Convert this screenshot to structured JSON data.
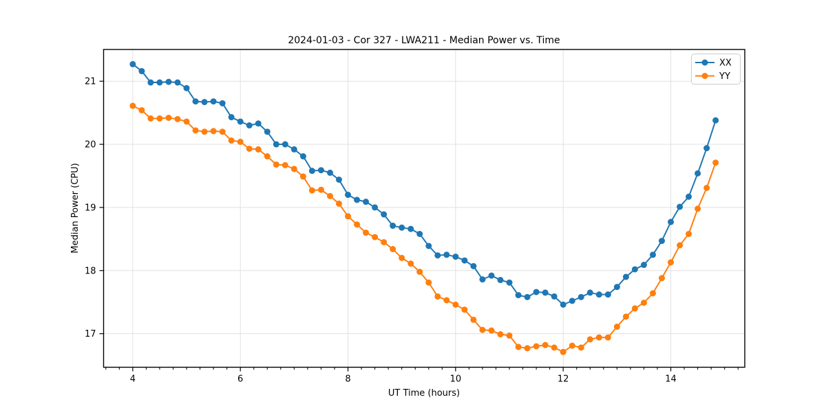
{
  "figure": {
    "title": "2024-01-03 - Cor 327 - LWA211 - Median Power vs. Time",
    "xlabel": "UT Time (hours)",
    "ylabel": "Median Power (CPU)"
  },
  "chart_data": {
    "type": "line",
    "title": "2024-01-03 - Cor 327 - LWA211 - Median Power vs. Time",
    "xlabel": "UT Time (hours)",
    "ylabel": "Median Power (CPU)",
    "xlim": [
      3.458,
      15.375
    ],
    "ylim": [
      16.468,
      21.503
    ],
    "x_major_ticks": [
      4,
      6,
      8,
      10,
      12,
      14
    ],
    "x_minor_tick_step": 0.25,
    "y_major_ticks": [
      17,
      18,
      19,
      20,
      21
    ],
    "grid": true,
    "legend_position": "upper right",
    "marker": "o",
    "x": [
      4.0,
      4.167,
      4.333,
      4.5,
      4.667,
      4.833,
      5.0,
      5.167,
      5.333,
      5.5,
      5.667,
      5.833,
      6.0,
      6.167,
      6.333,
      6.5,
      6.667,
      6.833,
      7.0,
      7.167,
      7.333,
      7.5,
      7.667,
      7.833,
      8.0,
      8.167,
      8.333,
      8.5,
      8.667,
      8.833,
      9.0,
      9.167,
      9.333,
      9.5,
      9.667,
      9.833,
      10.0,
      10.167,
      10.333,
      10.5,
      10.667,
      10.833,
      11.0,
      11.167,
      11.333,
      11.5,
      11.667,
      11.833,
      12.0,
      12.167,
      12.333,
      12.5,
      12.667,
      12.833,
      13.0,
      13.167,
      13.333,
      13.5,
      13.667,
      13.833,
      14.0,
      14.167,
      14.333,
      14.5,
      14.667,
      14.833
    ],
    "series": [
      {
        "name": "XX",
        "color": "#1f77b4",
        "values": [
          21.27,
          21.16,
          20.98,
          20.98,
          20.99,
          20.98,
          20.89,
          20.68,
          20.67,
          20.68,
          20.65,
          20.43,
          20.36,
          20.3,
          20.33,
          20.2,
          20.0,
          20.0,
          19.92,
          19.81,
          19.58,
          19.59,
          19.55,
          19.44,
          19.2,
          19.12,
          19.09,
          19.0,
          18.89,
          18.71,
          18.68,
          18.66,
          18.58,
          18.39,
          18.24,
          18.25,
          18.22,
          18.16,
          18.07,
          17.86,
          17.92,
          17.85,
          17.81,
          17.61,
          17.58,
          17.66,
          17.65,
          17.59,
          17.46,
          17.52,
          17.58,
          17.65,
          17.62,
          17.62,
          17.74,
          17.9,
          18.02,
          18.09,
          18.25,
          18.47,
          18.77,
          19.01,
          19.17,
          19.54,
          19.94,
          20.38
        ]
      },
      {
        "name": "YY",
        "color": "#ff7f0e",
        "values": [
          20.61,
          20.54,
          20.41,
          20.41,
          20.42,
          20.4,
          20.36,
          20.22,
          20.2,
          20.21,
          20.2,
          20.06,
          20.04,
          19.93,
          19.92,
          19.81,
          19.68,
          19.67,
          19.61,
          19.49,
          19.27,
          19.28,
          19.18,
          19.06,
          18.86,
          18.73,
          18.6,
          18.53,
          18.45,
          18.34,
          18.2,
          18.11,
          17.98,
          17.81,
          17.59,
          17.53,
          17.46,
          17.38,
          17.22,
          17.06,
          17.05,
          16.99,
          16.97,
          16.79,
          16.77,
          16.8,
          16.82,
          16.78,
          16.71,
          16.81,
          16.78,
          16.91,
          16.94,
          16.94,
          17.11,
          17.27,
          17.4,
          17.49,
          17.64,
          17.88,
          18.13,
          18.4,
          18.58,
          18.98,
          19.31,
          19.71
        ]
      }
    ],
    "style": {
      "grid_color": "#e0e0e0",
      "spine_color": "#000000",
      "background": "#ffffff",
      "legend_border": "#cccccc"
    }
  }
}
